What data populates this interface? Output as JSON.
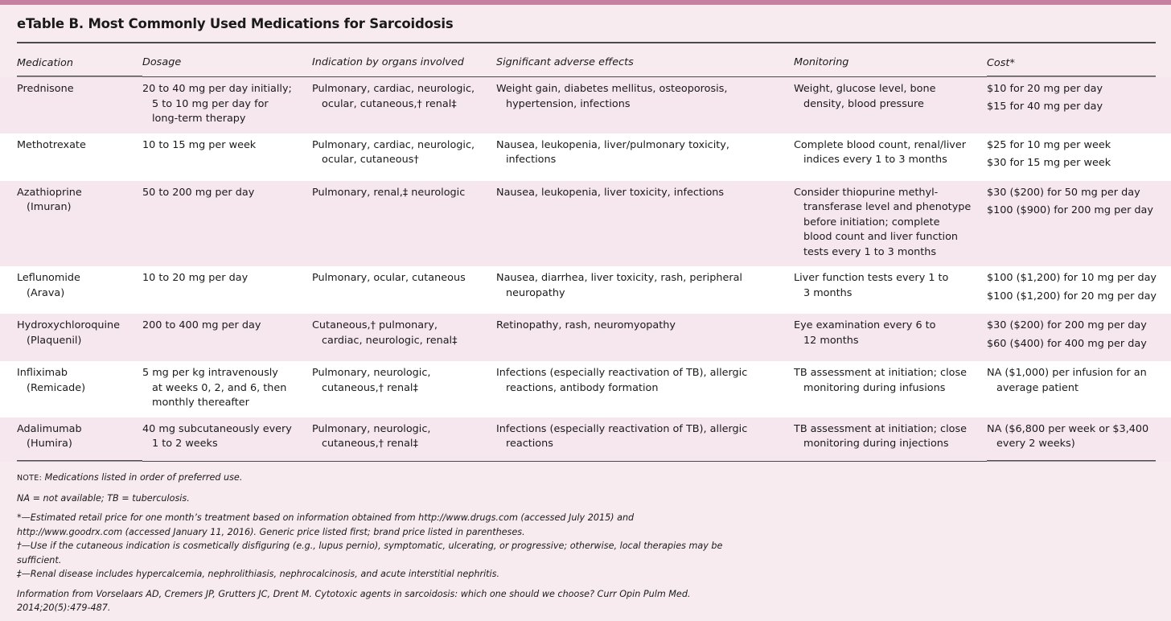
{
  "title": "eTable B. Most Commonly Used Medications for Sarcoidosis",
  "colors": {
    "accent_bar": "#c67f9e",
    "shaded_row": "#f6e6ed",
    "background": "#f7ebf0"
  },
  "headers": [
    "Medication",
    "Dosage",
    "Indication by organs involved",
    "Significant adverse effects",
    "Monitoring",
    "Cost*"
  ],
  "rows": [
    {
      "medication": "Prednisone",
      "dosage": "20 to 40 mg per day initially;\n5 to 10 mg per day for\nlong-term therapy",
      "indication": "Pulmonary, cardiac, neurologic,\nocular, cutaneous,† renal‡",
      "adverse": "Weight gain, diabetes mellitus, osteoporosis,\nhypertension, infections",
      "monitoring": "Weight, glucose level, bone\ndensity, blood pressure",
      "cost": [
        "$10 for 20 mg per day",
        "$15 for 40 mg per day"
      ]
    },
    {
      "medication": "Methotrexate",
      "dosage": "10 to 15 mg per week",
      "indication": "Pulmonary, cardiac, neurologic,\nocular, cutaneous†",
      "adverse": "Nausea, leukopenia, liver/pulmonary toxicity,\ninfections",
      "monitoring": "Complete blood count, renal/liver\nindices every 1 to 3 months",
      "cost": [
        "$25 for 10 mg per week",
        "$30 for 15 mg per week"
      ]
    },
    {
      "medication": "Azathioprine\n(Imuran)",
      "dosage": "50 to 200 mg per day",
      "indication": "Pulmonary, renal,‡ neurologic",
      "adverse": "Nausea, leukopenia, liver toxicity, infections",
      "monitoring": "Consider thiopurine methyl-\ntransferase level and phenotype\nbefore initiation; complete\nblood count and liver function\ntests every 1 to 3 months",
      "cost": [
        "$30 ($200) for 50 mg per day",
        "$100 ($900) for 200 mg per day"
      ]
    },
    {
      "medication": "Leflunomide\n(Arava)",
      "dosage": "10 to 20 mg per day",
      "indication": "Pulmonary, ocular, cutaneous",
      "adverse": "Nausea, diarrhea, liver toxicity, rash, peripheral\nneuropathy",
      "monitoring": "Liver function tests every 1 to\n3 months",
      "cost": [
        "$100 ($1,200) for 10 mg per day",
        "$100 ($1,200) for 20 mg per day"
      ]
    },
    {
      "medication": "Hydroxychloroquine\n(Plaquenil)",
      "dosage": "200 to 400 mg per day",
      "indication": "Cutaneous,† pulmonary,\ncardiac, neurologic, renal‡",
      "adverse": "Retinopathy, rash, neuromyopathy",
      "monitoring": "Eye examination every 6 to\n12 months",
      "cost": [
        "$30 ($200) for 200 mg per day",
        "$60 ($400) for 400 mg per day"
      ]
    },
    {
      "medication": "Infliximab\n(Remicade)",
      "dosage": "5 mg per kg intravenously\nat weeks 0, 2, and 6, then\nmonthly thereafter",
      "indication": "Pulmonary, neurologic,\ncutaneous,† renal‡",
      "adverse": "Infections (especially reactivation of TB), allergic\nreactions, antibody formation",
      "monitoring": "TB assessment at initiation; close\nmonitoring during infusions",
      "cost": [
        "NA ($1,000) per infusion for an\naverage patient"
      ]
    },
    {
      "medication": "Adalimumab\n(Humira)",
      "dosage": "40 mg subcutaneously every\n1 to 2 weeks",
      "indication": "Pulmonary, neurologic,\ncutaneous,† renal‡",
      "adverse": "Infections (especially reactivation of TB), allergic\nreactions",
      "monitoring": "TB assessment at initiation; close\nmonitoring during injections",
      "cost": [
        "NA ($6,800 per week or $3,400\nevery 2 weeks)"
      ]
    }
  ],
  "notes": {
    "note_label": "NOTE:",
    "note_text": " Medications listed in order of preferred use.",
    "abbrev": "NA = not available; TB = tuberculosis.",
    "star": "*—Estimated retail price for one month’s treatment based on information obtained from http://www.drugs.com (accessed July 2015) and http://www.goodrx.com (accessed January 11, 2016). Generic price listed first; brand price listed in parentheses.",
    "dagger": "†—Use if the cutaneous indication is cosmetically disfiguring (e.g., lupus pernio), symptomatic, ulcerating, or progressive; otherwise, local therapies may be sufficient.",
    "ddagger": "‡—Renal disease includes hypercalcemia, nephrolithiasis, nephrocalcinosis, and acute interstitial nephritis.",
    "source": "Information from Vorselaars AD, Cremers JP, Grutters JC, Drent M. Cytotoxic agents in sarcoidosis: which one should we choose? Curr Opin Pulm Med. 2014;20(5):479-487."
  }
}
